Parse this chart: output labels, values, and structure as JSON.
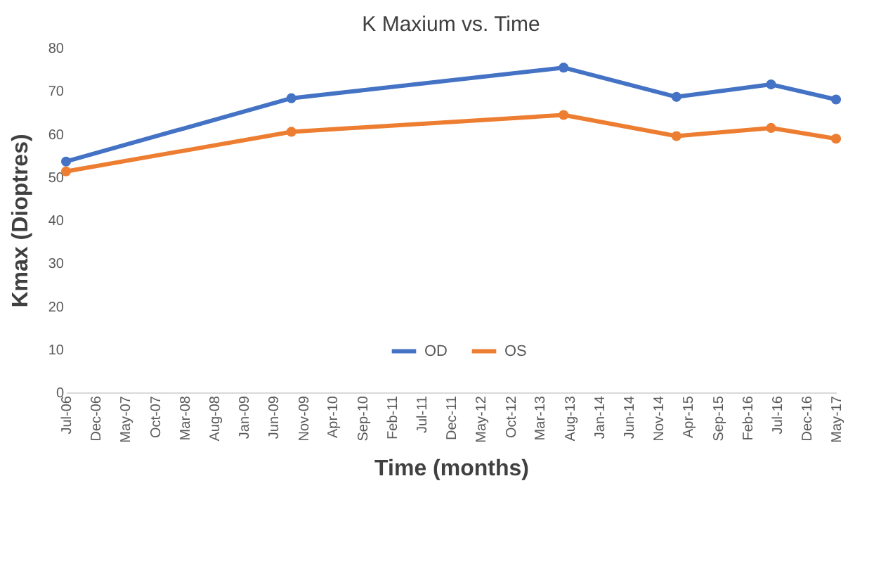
{
  "chart_data": {
    "type": "line",
    "title": "K Maxium vs. Time",
    "xlabel": "Time (months)",
    "ylabel": "Kmax (Dioptres)",
    "x": [
      "2006-07",
      "2009-09",
      "2013-07",
      "2015-02",
      "2016-06",
      "2017-05"
    ],
    "series": [
      {
        "name": "OD",
        "color": "#4472c4",
        "values": [
          53.6,
          68.3,
          75.4,
          68.6,
          71.5,
          68
        ]
      },
      {
        "name": "OS",
        "color": "#ed7d31",
        "values": [
          51.3,
          60.5,
          64.4,
          59.5,
          61.4,
          58.9
        ]
      }
    ],
    "xlim": [
      "2006-07",
      "2017-05"
    ],
    "xticks": [
      {
        "value": "2006-07",
        "label": "Jul-06"
      },
      {
        "value": "2006-12",
        "label": "Dec-06"
      },
      {
        "value": "2007-05",
        "label": "May-07"
      },
      {
        "value": "2007-10",
        "label": "Oct-07"
      },
      {
        "value": "2008-03",
        "label": "Mar-08"
      },
      {
        "value": "2008-08",
        "label": "Aug-08"
      },
      {
        "value": "2009-01",
        "label": "Jan-09"
      },
      {
        "value": "2009-06",
        "label": "Jun-09"
      },
      {
        "value": "2009-11",
        "label": "Nov-09"
      },
      {
        "value": "2010-04",
        "label": "Apr-10"
      },
      {
        "value": "2010-09",
        "label": "Sep-10"
      },
      {
        "value": "2011-02",
        "label": "Feb-11"
      },
      {
        "value": "2011-07",
        "label": "Jul-11"
      },
      {
        "value": "2011-12",
        "label": "Dec-11"
      },
      {
        "value": "2012-05",
        "label": "May-12"
      },
      {
        "value": "2012-10",
        "label": "Oct-12"
      },
      {
        "value": "2013-03",
        "label": "Mar-13"
      },
      {
        "value": "2013-08",
        "label": "Aug-13"
      },
      {
        "value": "2014-01",
        "label": "Jan-14"
      },
      {
        "value": "2014-06",
        "label": "Jun-14"
      },
      {
        "value": "2014-11",
        "label": "Nov-14"
      },
      {
        "value": "2015-04",
        "label": "Apr-15"
      },
      {
        "value": "2015-09",
        "label": "Sep-15"
      },
      {
        "value": "2016-02",
        "label": "Feb-16"
      },
      {
        "value": "2016-07",
        "label": "Jul-16"
      },
      {
        "value": "2016-12",
        "label": "Dec-16"
      },
      {
        "value": "2017-05",
        "label": "May-17"
      }
    ],
    "ylim": [
      0,
      80
    ],
    "yticks": [
      0,
      10,
      20,
      30,
      40,
      50,
      60,
      70,
      80
    ],
    "grid": false,
    "legend": "bottom",
    "marker": "circle",
    "line_style": "solid"
  }
}
